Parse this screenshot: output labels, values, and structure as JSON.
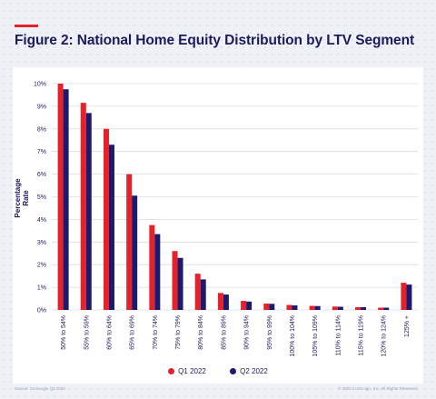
{
  "figure": {
    "title": "Figure 2: National Home Equity Distribution by LTV Segment",
    "source": "Source: CoreLogic Q2 2022",
    "copyright": "© 2022 CoreLogic, Inc. All Rights Reserved."
  },
  "colors": {
    "q1": "#e8202a",
    "q2": "#1d1a6e",
    "title": "#1d1a5e",
    "grid": "#d8dce4"
  },
  "legend": {
    "q1_label": "Q1 2022",
    "q2_label": "Q2 2022"
  },
  "chart_data": {
    "type": "bar",
    "title": "Figure 2: National Home Equity Distribution by LTV Segment",
    "xlabel": "",
    "ylabel": "Percentage Rate",
    "ylim": [
      0,
      10
    ],
    "yticks": [
      "0%",
      "1%",
      "2%",
      "3%",
      "4%",
      "5%",
      "6%",
      "7%",
      "8%",
      "9%",
      "10%"
    ],
    "grid": true,
    "legend_position": "bottom",
    "categories": [
      "50% to 54%",
      "55% to 59%",
      "60% to 64%",
      "65% to 69%",
      "70% to 74%",
      "75% to 79%",
      "80% to 84%",
      "85% to 89%",
      "90% to 94%",
      "95% to 99%",
      "100% to 104%",
      "105% to 109%",
      "110% to 114%",
      "115% to 119%",
      "120% to 124%",
      "125% +"
    ],
    "series": [
      {
        "name": "Q1 2022",
        "color": "#e8202a",
        "values": [
          10.0,
          9.15,
          8.0,
          6.0,
          3.75,
          2.6,
          1.6,
          0.75,
          0.4,
          0.28,
          0.22,
          0.18,
          0.15,
          0.12,
          0.1,
          1.2
        ]
      },
      {
        "name": "Q2 2022",
        "color": "#1d1a6e",
        "values": [
          9.75,
          8.7,
          7.3,
          5.05,
          3.35,
          2.3,
          1.35,
          0.68,
          0.37,
          0.27,
          0.2,
          0.17,
          0.14,
          0.12,
          0.1,
          1.12
        ]
      }
    ]
  }
}
